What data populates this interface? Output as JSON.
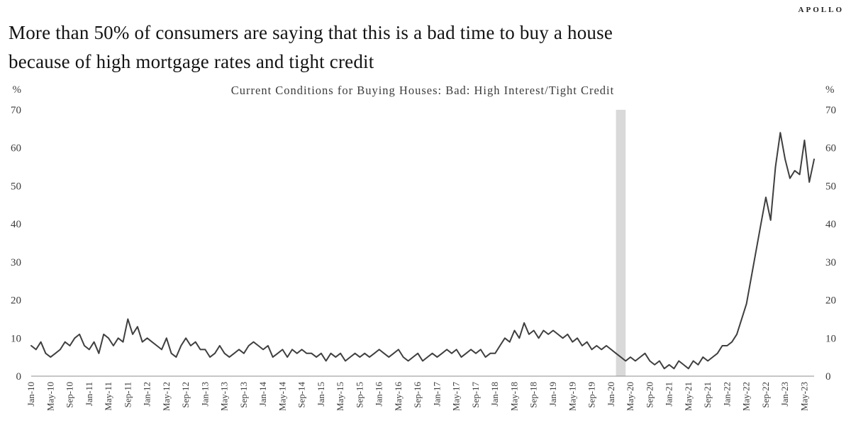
{
  "logo": "APOLLO",
  "header": {
    "title_line1": "More than 50% of consumers are saying that this is a bad time to buy a house",
    "title_line2": "because of high mortgage rates and tight credit"
  },
  "chart_data": {
    "type": "line",
    "title": "Current Conditions for Buying Houses: Bad: High Interest/Tight Credit",
    "unit_label": "%",
    "ylim": [
      0,
      70
    ],
    "ytick_step": 10,
    "x_label_every": 4,
    "line_color": "#3f3f3f",
    "axis_color": "#8c8c8c",
    "text_color": "#3c3c3c",
    "legend_position": "none",
    "grid": false,
    "recession_band": {
      "start": "Feb-20",
      "end": "Apr-20",
      "color": "#d9d9d9"
    },
    "x": [
      "Jan-10",
      "Feb-10",
      "Mar-10",
      "Apr-10",
      "May-10",
      "Jun-10",
      "Jul-10",
      "Aug-10",
      "Sep-10",
      "Oct-10",
      "Nov-10",
      "Dec-10",
      "Jan-11",
      "Feb-11",
      "Mar-11",
      "Apr-11",
      "May-11",
      "Jun-11",
      "Jul-11",
      "Aug-11",
      "Sep-11",
      "Oct-11",
      "Nov-11",
      "Dec-11",
      "Jan-12",
      "Feb-12",
      "Mar-12",
      "Apr-12",
      "May-12",
      "Jun-12",
      "Jul-12",
      "Aug-12",
      "Sep-12",
      "Oct-12",
      "Nov-12",
      "Dec-12",
      "Jan-13",
      "Feb-13",
      "Mar-13",
      "Apr-13",
      "May-13",
      "Jun-13",
      "Jul-13",
      "Aug-13",
      "Sep-13",
      "Oct-13",
      "Nov-13",
      "Dec-13",
      "Jan-14",
      "Feb-14",
      "Mar-14",
      "Apr-14",
      "May-14",
      "Jun-14",
      "Jul-14",
      "Aug-14",
      "Sep-14",
      "Oct-14",
      "Nov-14",
      "Dec-14",
      "Jan-15",
      "Feb-15",
      "Mar-15",
      "Apr-15",
      "May-15",
      "Jun-15",
      "Jul-15",
      "Aug-15",
      "Sep-15",
      "Oct-15",
      "Nov-15",
      "Dec-15",
      "Jan-16",
      "Feb-16",
      "Mar-16",
      "Apr-16",
      "May-16",
      "Jun-16",
      "Jul-16",
      "Aug-16",
      "Sep-16",
      "Oct-16",
      "Nov-16",
      "Dec-16",
      "Jan-17",
      "Feb-17",
      "Mar-17",
      "Apr-17",
      "May-17",
      "Jun-17",
      "Jul-17",
      "Aug-17",
      "Sep-17",
      "Oct-17",
      "Nov-17",
      "Dec-17",
      "Jan-18",
      "Feb-18",
      "Mar-18",
      "Apr-18",
      "May-18",
      "Jun-18",
      "Jul-18",
      "Aug-18",
      "Sep-18",
      "Oct-18",
      "Nov-18",
      "Dec-18",
      "Jan-19",
      "Feb-19",
      "Mar-19",
      "Apr-19",
      "May-19",
      "Jun-19",
      "Jul-19",
      "Aug-19",
      "Sep-19",
      "Oct-19",
      "Nov-19",
      "Dec-19",
      "Jan-20",
      "Feb-20",
      "Mar-20",
      "Apr-20",
      "May-20",
      "Jun-20",
      "Jul-20",
      "Aug-20",
      "Sep-20",
      "Oct-20",
      "Nov-20",
      "Dec-20",
      "Jan-21",
      "Feb-21",
      "Mar-21",
      "Apr-21",
      "May-21",
      "Jun-21",
      "Jul-21",
      "Aug-21",
      "Sep-21",
      "Oct-21",
      "Nov-21",
      "Dec-21",
      "Jan-22",
      "Feb-22",
      "Mar-22",
      "Apr-22",
      "May-22",
      "Jun-22",
      "Jul-22",
      "Aug-22",
      "Sep-22",
      "Oct-22",
      "Nov-22",
      "Dec-22",
      "Jan-23",
      "Feb-23",
      "Mar-23",
      "Apr-23",
      "May-23",
      "Jun-23",
      "Jul-23"
    ],
    "values": [
      8,
      7,
      9,
      6,
      5,
      6,
      7,
      9,
      8,
      10,
      11,
      8,
      7,
      9,
      6,
      11,
      10,
      8,
      10,
      9,
      15,
      11,
      13,
      9,
      10,
      9,
      8,
      7,
      10,
      6,
      5,
      8,
      10,
      8,
      9,
      7,
      7,
      5,
      6,
      8,
      6,
      5,
      6,
      7,
      6,
      8,
      9,
      8,
      7,
      8,
      5,
      6,
      7,
      5,
      7,
      6,
      7,
      6,
      6,
      5,
      6,
      4,
      6,
      5,
      6,
      4,
      5,
      6,
      5,
      6,
      5,
      6,
      7,
      6,
      5,
      6,
      7,
      5,
      4,
      5,
      6,
      4,
      5,
      6,
      5,
      6,
      7,
      6,
      7,
      5,
      6,
      7,
      6,
      7,
      5,
      6,
      6,
      8,
      10,
      9,
      12,
      10,
      14,
      11,
      12,
      10,
      12,
      11,
      12,
      11,
      10,
      11,
      9,
      10,
      8,
      9,
      7,
      8,
      7,
      8,
      7,
      6,
      5,
      4,
      5,
      4,
      5,
      6,
      4,
      3,
      4,
      2,
      3,
      2,
      4,
      3,
      2,
      4,
      3,
      5,
      4,
      5,
      6,
      8,
      8,
      9,
      11,
      15,
      19,
      26,
      33,
      40,
      47,
      41,
      55,
      64,
      57,
      52,
      54,
      53,
      62,
      51,
      57
    ]
  }
}
